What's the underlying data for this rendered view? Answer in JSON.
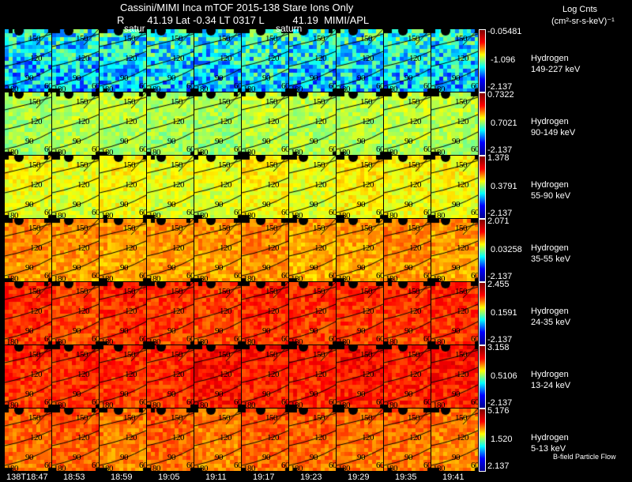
{
  "header": {
    "title": "Cassini/MIMI Inca mTOF  2015-138   Stare   Ions Only",
    "subtitle": "R        41.19 Lat -0.34 LT 0317 L          41.19  MIMI/APL",
    "saturn_labels": [
      "satur",
      "saturn"
    ],
    "units_line1": "Log Cnts",
    "units_line2": "(cm²-sr-s-keV)⁻¹"
  },
  "contour_labels": [
    "150",
    "120",
    "90",
    "60",
    "180"
  ],
  "rows": [
    {
      "species": "Hydrogen",
      "energy": "149-227 keV",
      "cbar": [
        "-0.05481",
        "-1.096",
        "-2.137"
      ],
      "mean_level": 0.4
    },
    {
      "species": "Hydrogen",
      "energy": "90-149 keV",
      "cbar": [
        "0.7322",
        "0.7021",
        "-2.137"
      ],
      "mean_level": 0.56
    },
    {
      "species": "Hydrogen",
      "energy": "55-90 keV",
      "cbar": [
        "1.378",
        "0.3791",
        "-2.137"
      ],
      "mean_level": 0.63
    },
    {
      "species": "Hydrogen",
      "energy": "35-55 keV",
      "cbar": [
        "2.071",
        "0.03258",
        "-2.137"
      ],
      "mean_level": 0.74
    },
    {
      "species": "Hydrogen",
      "energy": "24-35 keV",
      "cbar": [
        "2.455",
        "0.1591",
        "-2.137"
      ],
      "mean_level": 0.83
    },
    {
      "species": "Hydrogen",
      "energy": "13-24 keV",
      "cbar": [
        "3.158",
        "0.5106",
        "-2.137"
      ],
      "mean_level": 0.86
    },
    {
      "species": "Hydrogen",
      "energy": "5-13 keV",
      "cbar": [
        "5.176",
        "1.520",
        "2.137"
      ],
      "mean_level": 0.78
    }
  ],
  "times": [
    "138T18:47",
    "18:53",
    "18:59",
    "19:05",
    "19:11",
    "19:17",
    "19:23",
    "19:29",
    "19:35",
    "19:41"
  ],
  "legend_note": "B-field Particle Flow",
  "chart_data": {
    "type": "heatmap",
    "title": "Cassini/MIMI Inca mTOF  2015-138   Stare   Ions Only",
    "colorbar_label": "Log Cnts (cm²-sr-s-keV)⁻¹",
    "columns": [
      "138T18:47",
      "18:53",
      "18:59",
      "19:05",
      "19:11",
      "19:17",
      "19:23",
      "19:29",
      "19:35",
      "19:41"
    ],
    "rows": [
      "149-227 keV",
      "90-149 keV",
      "55-90 keV",
      "35-55 keV",
      "24-35 keV",
      "13-24 keV",
      "5-13 keV"
    ],
    "contours_deg": [
      150,
      120,
      90,
      60
    ]
  }
}
